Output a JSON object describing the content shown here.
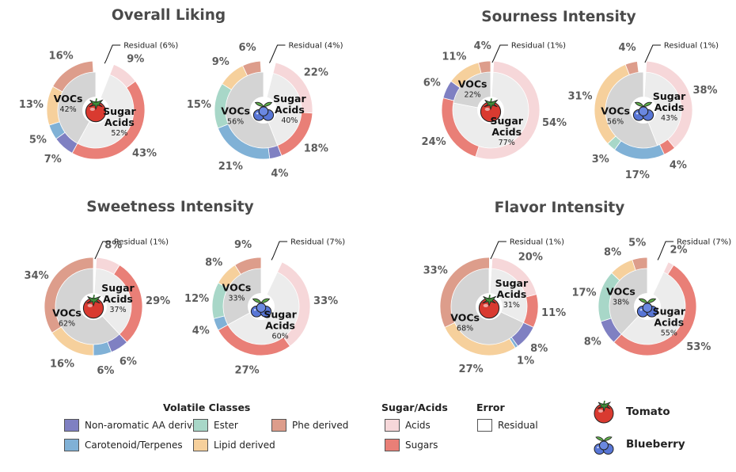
{
  "colors": {
    "nonaromatic": "#7f80c2",
    "carotenoid": "#80b1d6",
    "ester": "#a8d7c8",
    "lipid": "#f6d09c",
    "phe": "#dd9d8b",
    "acids": "#f6d7d9",
    "sugars": "#e97f77",
    "residual": "#ffffff",
    "voc_inner": "#d4d4d4",
    "sugar_inner": "#ececec",
    "title": "#4a4a4a",
    "pct_text": "#5c5c5c"
  },
  "chart_data": [
    {
      "type": "pie",
      "title": "Overall Liking",
      "fruit": "Tomato",
      "inner": [
        {
          "label": "VOCs",
          "pct_label": "42%",
          "value": 42
        },
        {
          "label": "Sugar Acids",
          "pct_label": "52%",
          "value": 52
        }
      ],
      "residual_label": "Residual (6%)",
      "residual": 6,
      "outer": [
        {
          "cls": "acids",
          "value": 9,
          "label": "9%"
        },
        {
          "cls": "sugars",
          "value": 43,
          "label": "43%"
        },
        {
          "cls": "nonaromatic",
          "value": 7,
          "label": "7%"
        },
        {
          "cls": "carotenoid",
          "value": 5,
          "label": "5%"
        },
        {
          "cls": "lipid",
          "value": 13,
          "label": "13%"
        },
        {
          "cls": "phe",
          "value": 16,
          "label": "16%"
        }
      ]
    },
    {
      "type": "pie",
      "title": "",
      "fruit": "Blueberry",
      "inner": [
        {
          "label": "VOCs",
          "pct_label": "56%",
          "value": 56
        },
        {
          "label": "Sugar Acids",
          "pct_label": "40%",
          "value": 40
        }
      ],
      "residual_label": "Residual (4%)",
      "residual": 4,
      "outer": [
        {
          "cls": "acids",
          "value": 22,
          "label": "22%"
        },
        {
          "cls": "sugars",
          "value": 18,
          "label": "18%"
        },
        {
          "cls": "nonaromatic",
          "value": 4,
          "label": "4%"
        },
        {
          "cls": "carotenoid",
          "value": 21,
          "label": "21%"
        },
        {
          "cls": "ester",
          "value": 15,
          "label": "15%"
        },
        {
          "cls": "lipid",
          "value": 9,
          "label": "9%"
        },
        {
          "cls": "phe",
          "value": 6,
          "label": "6%"
        }
      ]
    },
    {
      "type": "pie",
      "title": "Sourness Intensity",
      "fruit": "Tomato",
      "inner": [
        {
          "label": "VOCs",
          "pct_label": "22%",
          "value": 22
        },
        {
          "label": "Sugar Acids",
          "pct_label": "77%",
          "value": 77
        }
      ],
      "residual_label": "Residual (1%)",
      "residual": 1,
      "outer": [
        {
          "cls": "acids",
          "value": 54,
          "label": "54%"
        },
        {
          "cls": "sugars",
          "value": 24,
          "label": "24%"
        },
        {
          "cls": "nonaromatic",
          "value": 6,
          "label": "6%"
        },
        {
          "cls": "lipid",
          "value": 11,
          "label": "11%"
        },
        {
          "cls": "phe",
          "value": 4,
          "label": "4%"
        }
      ]
    },
    {
      "type": "pie",
      "title": "",
      "fruit": "Blueberry",
      "inner": [
        {
          "label": "VOCs",
          "pct_label": "56%",
          "value": 56
        },
        {
          "label": "Sugar Acids",
          "pct_label": "43%",
          "value": 43
        }
      ],
      "residual_label": "Residual (1%)",
      "residual": 1,
      "outer": [
        {
          "cls": "acids",
          "value": 38,
          "label": "38%"
        },
        {
          "cls": "sugars",
          "value": 4,
          "label": "4%"
        },
        {
          "cls": "carotenoid",
          "value": 17,
          "label": "17%"
        },
        {
          "cls": "ester",
          "value": 3,
          "label": "3%"
        },
        {
          "cls": "lipid",
          "value": 31,
          "label": "31%"
        },
        {
          "cls": "phe",
          "value": 4,
          "label": "4%"
        }
      ]
    },
    {
      "type": "pie",
      "title": "Sweetness Intensity",
      "fruit": "Tomato",
      "inner": [
        {
          "label": "VOCs",
          "pct_label": "62%",
          "value": 62
        },
        {
          "label": "Sugar Acids",
          "pct_label": "37%",
          "value": 37
        }
      ],
      "residual_label": "Residual (1%)",
      "residual": 1,
      "outer": [
        {
          "cls": "acids",
          "value": 8,
          "label": "8%"
        },
        {
          "cls": "sugars",
          "value": 29,
          "label": "29%"
        },
        {
          "cls": "nonaromatic",
          "value": 6,
          "label": "6%"
        },
        {
          "cls": "carotenoid",
          "value": 6,
          "label": "6%"
        },
        {
          "cls": "lipid",
          "value": 16,
          "label": "16%"
        },
        {
          "cls": "phe",
          "value": 34,
          "label": "34%"
        }
      ]
    },
    {
      "type": "pie",
      "title": "",
      "fruit": "Blueberry",
      "inner": [
        {
          "label": "VOCs",
          "pct_label": "33%",
          "value": 33
        },
        {
          "label": "Sugar Acids",
          "pct_label": "60%",
          "value": 60
        }
      ],
      "residual_label": "Residual (7%)",
      "residual": 7,
      "outer": [
        {
          "cls": "acids",
          "value": 33,
          "label": "33%"
        },
        {
          "cls": "sugars",
          "value": 27,
          "label": "27%"
        },
        {
          "cls": "carotenoid",
          "value": 4,
          "label": "4%"
        },
        {
          "cls": "ester",
          "value": 12,
          "label": "12%"
        },
        {
          "cls": "lipid",
          "value": 8,
          "label": "8%"
        },
        {
          "cls": "phe",
          "value": 9,
          "label": "9%"
        }
      ]
    },
    {
      "type": "pie",
      "title": "Flavor Intensity",
      "fruit": "Tomato",
      "inner": [
        {
          "label": "VOCs",
          "pct_label": "68%",
          "value": 68
        },
        {
          "label": "Sugar Acids",
          "pct_label": "31%",
          "value": 31
        }
      ],
      "residual_label": "Residual (1%)",
      "residual": 1,
      "outer": [
        {
          "cls": "acids",
          "value": 20,
          "label": "20%"
        },
        {
          "cls": "sugars",
          "value": 11,
          "label": "11%"
        },
        {
          "cls": "nonaromatic",
          "value": 8,
          "label": "8%"
        },
        {
          "cls": "carotenoid",
          "value": 1,
          "label": "1%"
        },
        {
          "cls": "lipid",
          "value": 27,
          "label": "27%"
        },
        {
          "cls": "phe",
          "value": 33,
          "label": "33%"
        }
      ]
    },
    {
      "type": "pie",
      "title": "",
      "fruit": "Blueberry",
      "inner": [
        {
          "label": "VOCs",
          "pct_label": "38%",
          "value": 38
        },
        {
          "label": "Sugar Acids",
          "pct_label": "55%",
          "value": 55
        }
      ],
      "residual_label": "Residual (7%)",
      "residual": 7,
      "outer": [
        {
          "cls": "acids",
          "value": 2,
          "label": "2%"
        },
        {
          "cls": "sugars",
          "value": 53,
          "label": "53%"
        },
        {
          "cls": "nonaromatic",
          "value": 8,
          "label": "8%"
        },
        {
          "cls": "ester",
          "value": 17,
          "label": "17%"
        },
        {
          "cls": "lipid",
          "value": 8,
          "label": "8%"
        },
        {
          "cls": "phe",
          "value": 5,
          "label": "5%"
        }
      ]
    }
  ],
  "legend": {
    "volatile_title": "Volatile Classes",
    "sugar_title": "Sugar/Acids",
    "error_title": "Error",
    "items": {
      "nonaromatic": "Non-aromatic AA derived",
      "carotenoid": "Carotenoid/Terpenes",
      "ester": "Ester",
      "lipid": "Lipid derived",
      "phe": "Phe derived",
      "acids": "Acids",
      "sugars": "Sugars",
      "residual": "Residual"
    },
    "tomato_label": "Tomato",
    "blueberry_label": "Blueberry"
  }
}
